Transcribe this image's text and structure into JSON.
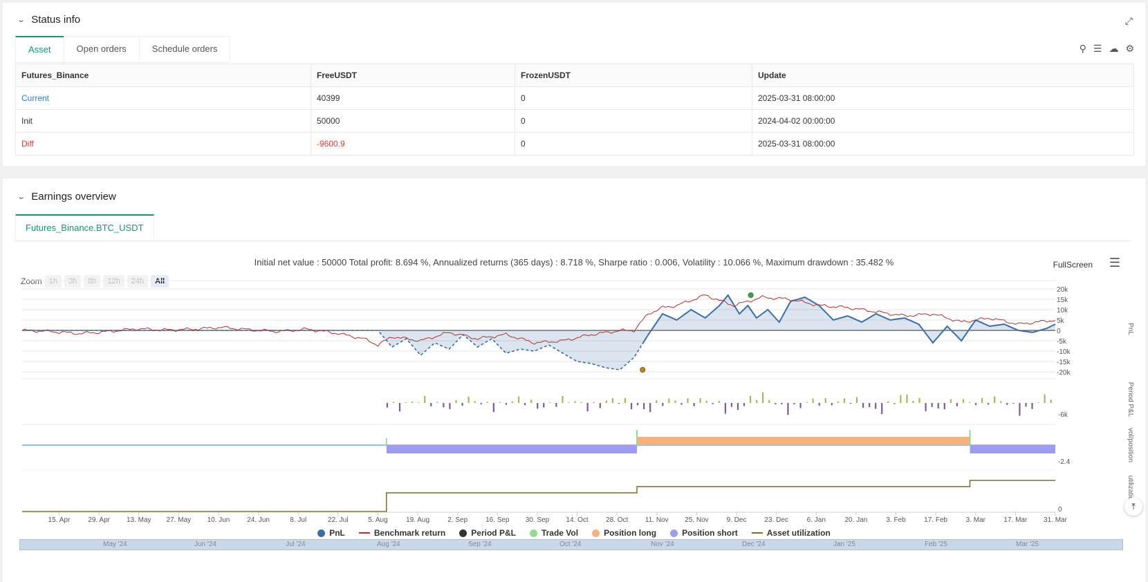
{
  "status_panel": {
    "title": "Status info",
    "expand_icon": "expand-icon",
    "tabs": [
      "Asset",
      "Open orders",
      "Schedule orders"
    ],
    "toolbar_icons": [
      "search-icon",
      "list-icon",
      "cloud-download-icon",
      "gear-icon"
    ],
    "table": {
      "headers": [
        "Futures_Binance",
        "FreeUSDT",
        "FrozenUSDT",
        "Update"
      ],
      "rows": [
        [
          "Current",
          "40399",
          "0",
          "2025-03-31 08:00:00"
        ],
        [
          "Init",
          "50000",
          "0",
          "2024-04-02 00:00:00"
        ],
        [
          "Diff",
          "-9600.9",
          "0",
          "2025-03-31 08:00:00"
        ]
      ]
    }
  },
  "earnings_panel": {
    "title": "Earnings overview",
    "tab": "Futures_Binance.BTC_USDT",
    "summary": "Initial net value : 50000 Total profit: 8.694 %, Annualized returns (365 days) : 8.718 %, Sharpe ratio : 0.006, Volatility : 10.066 %, Maximum drawdown : 35.482 %",
    "fullscreen_label": "FullScreen",
    "zoom": {
      "label": "Zoom",
      "options": [
        "1h",
        "3h",
        "8h",
        "12h",
        "24h",
        "All"
      ],
      "selected": "All"
    },
    "legend": [
      "PnL",
      "Benchmark return",
      "Period P&L",
      "Trade Vol",
      "Position long",
      "Position short",
      "Asset utilization"
    ],
    "navigator_labels": [
      "May '24",
      "Jun '24",
      "Jul '24",
      "Aug '24",
      "Sep '24",
      "Oct '24",
      "Nov '24",
      "Dec '24",
      "Jan '25",
      "Feb '25",
      "Mar '25"
    ],
    "back_to_top": "⤒"
  },
  "chart_data": {
    "type": "line",
    "x_ticks": [
      "15. Apr",
      "29. Apr",
      "13. May",
      "27. May",
      "10. Jun",
      "24. Jun",
      "8. Jul",
      "22. Jul",
      "5. Aug",
      "19. Aug",
      "2. Sep",
      "16. Sep",
      "30. Sep",
      "14. Oct",
      "28. Oct",
      "11. Nov",
      "25. Nov",
      "9. Dec",
      "23. Dec",
      "6. Jan",
      "20. Jan",
      "3. Feb",
      "17. Feb",
      "3. Mar",
      "17. Mar",
      "31. Mar"
    ],
    "x_range_days": [
      0,
      363
    ],
    "panes": [
      {
        "name": "PnL",
        "ylabel": "PnL",
        "yticks": [
          "20k",
          "15k",
          "10k",
          "5k",
          "0",
          "-5k",
          "-10k",
          "-15k",
          "-20k"
        ],
        "ylim": [
          -20000,
          20000
        ]
      },
      {
        "name": "Period P&L",
        "ylabel": "Period P&L",
        "yticks": [
          "-6k"
        ]
      },
      {
        "name": "vol/position",
        "ylabel": "vol/position",
        "yticks": [
          "-2.4"
        ]
      },
      {
        "name": "utilization",
        "ylabel": "utilizatio...",
        "yticks": [
          "0"
        ]
      }
    ],
    "series": [
      {
        "name": "PnL",
        "color": "#3a6ea5",
        "days": [
          0,
          60,
          125,
          130,
          135,
          140,
          145,
          150,
          155,
          160,
          165,
          170,
          175,
          180,
          185,
          190,
          195,
          200,
          205,
          210,
          215,
          220,
          225,
          230,
          235,
          240,
          245,
          248,
          252,
          255,
          258,
          262,
          266,
          270,
          275,
          280,
          285,
          290,
          295,
          300,
          305,
          310,
          315,
          320,
          325,
          330,
          335,
          340,
          345,
          350,
          355,
          360,
          363
        ],
        "values": [
          0,
          0,
          0,
          -8000,
          -4000,
          -12000,
          -6000,
          -9000,
          -2000,
          -8000,
          -4000,
          -11000,
          -9000,
          -10000,
          -7000,
          -11000,
          -15000,
          -16000,
          -18000,
          -19000,
          -13000,
          -2000,
          8000,
          5000,
          10000,
          6000,
          12000,
          17000,
          8000,
          12000,
          6000,
          10000,
          4000,
          14000,
          16000,
          12000,
          5000,
          7000,
          4000,
          8000,
          5000,
          6000,
          3000,
          -6000,
          2000,
          -5000,
          5000,
          2000,
          3000,
          0,
          -1000,
          1000,
          3000
        ]
      },
      {
        "name": "Benchmark return",
        "color": "#b03030",
        "days": [
          0,
          10,
          20,
          30,
          40,
          50,
          60,
          70,
          80,
          90,
          100,
          110,
          120,
          125,
          130,
          140,
          150,
          160,
          170,
          180,
          190,
          200,
          210,
          215,
          220,
          225,
          230,
          240,
          250,
          260,
          270,
          280,
          290,
          300,
          310,
          320,
          330,
          340,
          350,
          363
        ],
        "values": [
          0,
          -500,
          -1500,
          -600,
          800,
          200,
          600,
          1500,
          300,
          -500,
          600,
          -1200,
          -4000,
          -7000,
          -3000,
          -5000,
          -1000,
          -4000,
          -2000,
          -6000,
          -5000,
          -2000,
          -100,
          0,
          8000,
          11000,
          12000,
          17000,
          12000,
          16000,
          15000,
          12000,
          11000,
          9000,
          7000,
          8000,
          4000,
          6000,
          3000,
          5000
        ]
      },
      {
        "name": "Period P&L",
        "color": "#9bbb59",
        "negative_color": "#7e5a9b"
      },
      {
        "name": "Position long",
        "color": "#f5b27a",
        "days": [
          216,
          333
        ],
        "value": 1
      },
      {
        "name": "Position short",
        "color": "#9b9ef0",
        "segments_days": [
          [
            128,
            216
          ],
          [
            333,
            363
          ]
        ],
        "value": -1
      },
      {
        "name": "Trade Vol",
        "color": "#8ee08e",
        "days": [
          128,
          216,
          333
        ]
      },
      {
        "name": "Asset utilization",
        "color": "#7a6a2a",
        "steps_days": [
          [
            0,
            0
          ],
          [
            128,
            0.45
          ],
          [
            216,
            0.6
          ],
          [
            333,
            0.75
          ]
        ]
      }
    ],
    "markers": [
      {
        "day": 256,
        "value": 17000,
        "color": "#43a047"
      },
      {
        "day": 218,
        "value": -19000,
        "color": "#e8740c"
      }
    ]
  }
}
